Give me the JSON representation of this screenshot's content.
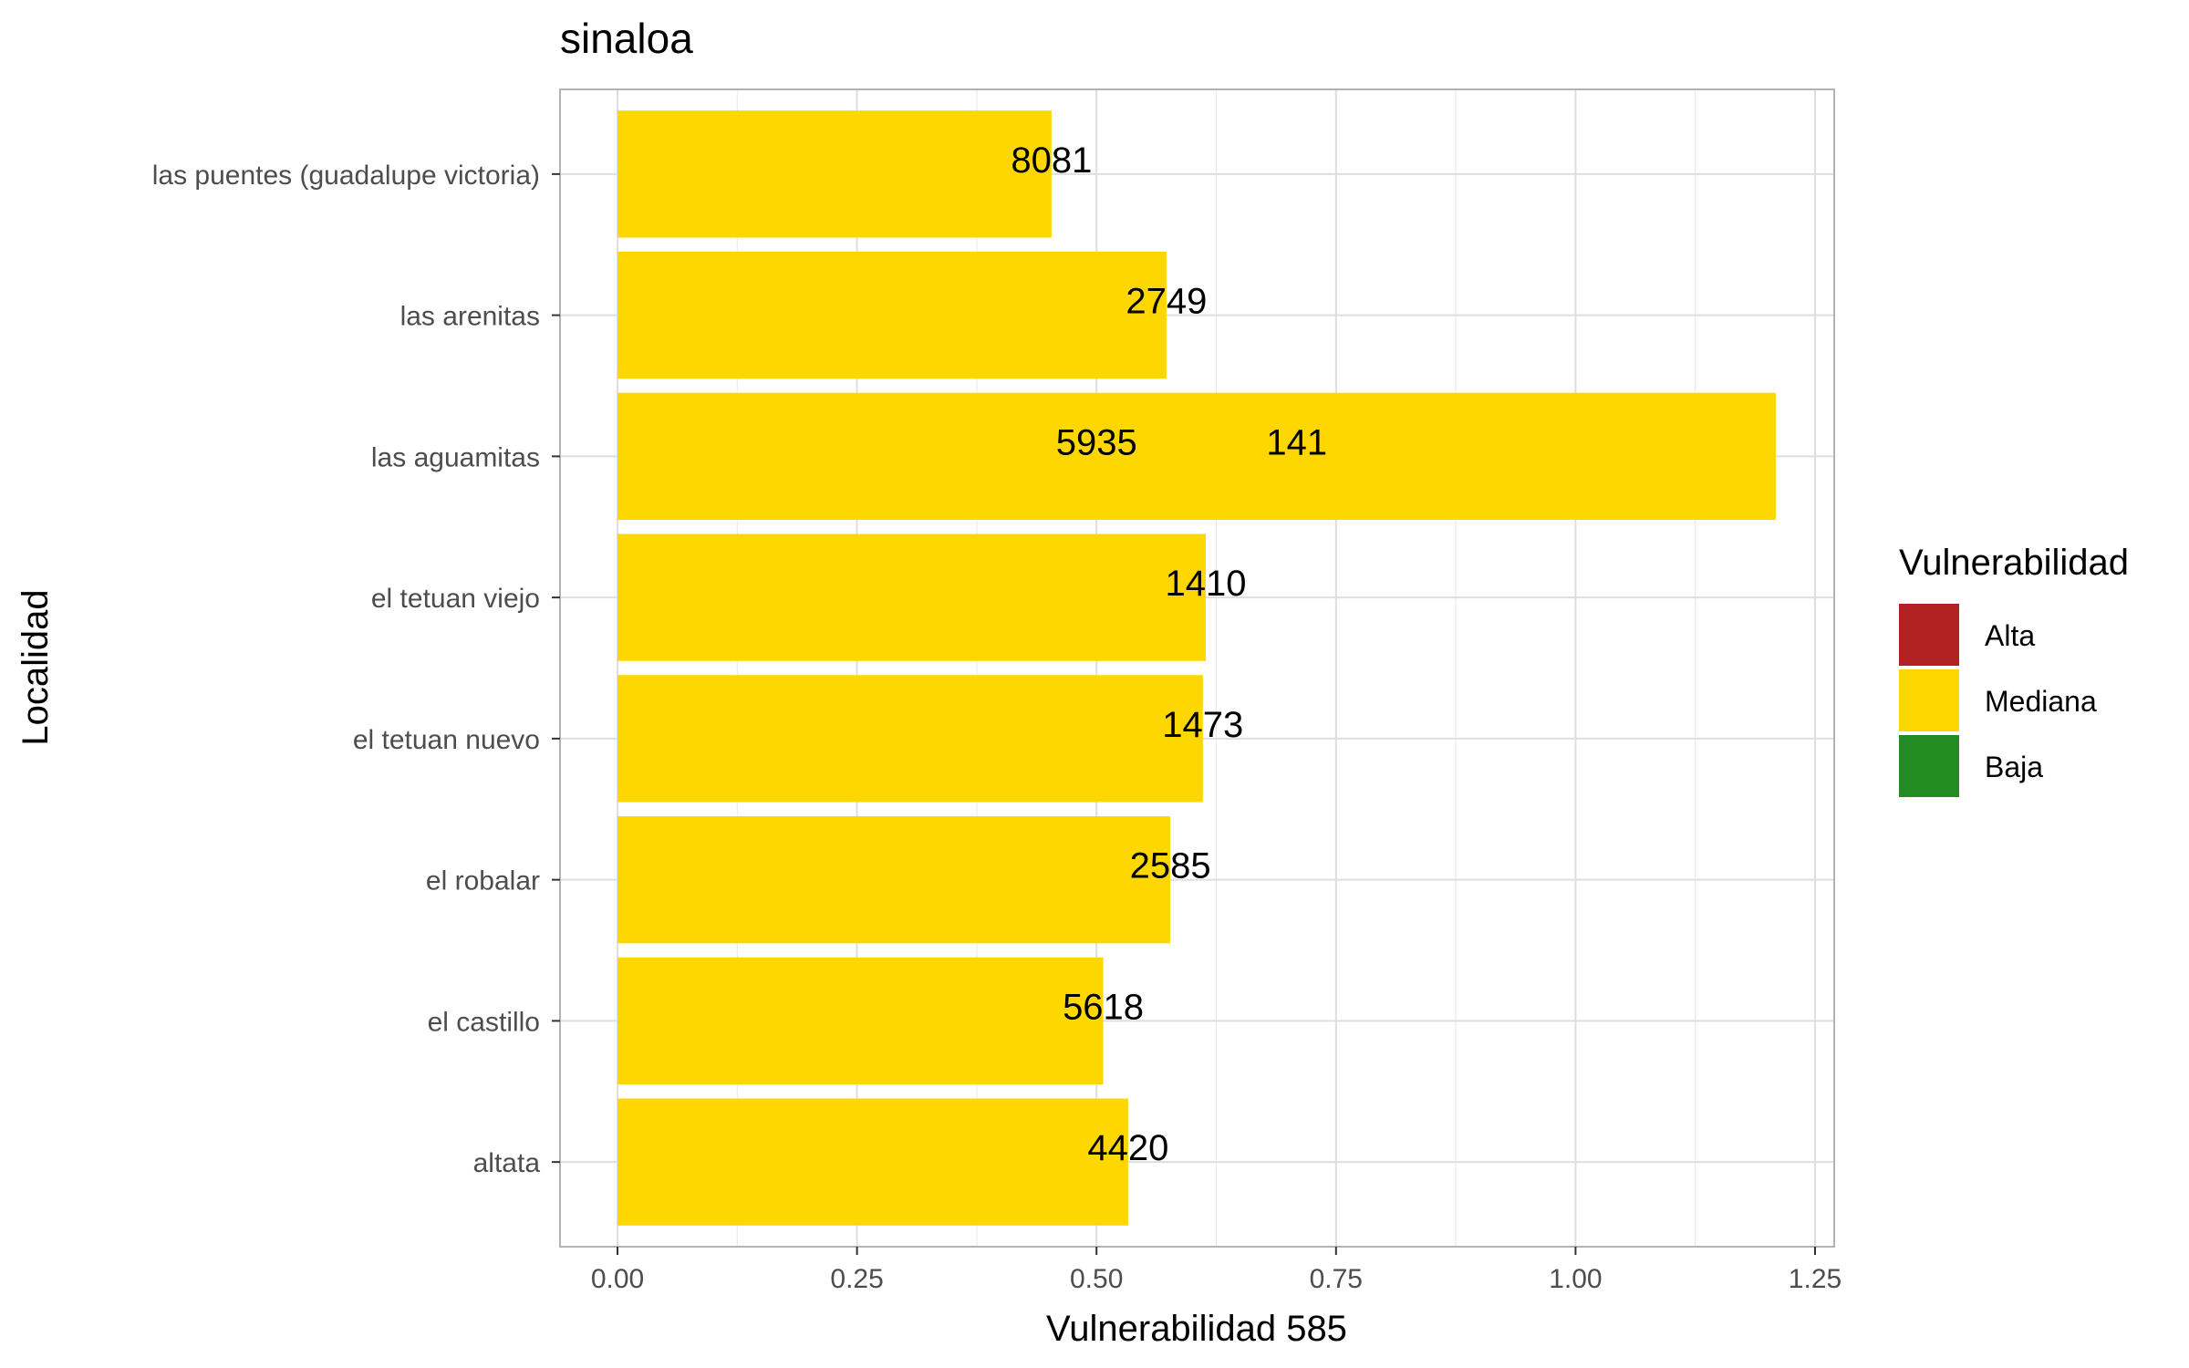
{
  "chart_data": {
    "type": "bar",
    "orientation": "horizontal",
    "title": "sinaloa",
    "xlabel": "Vulnerabilidad 585",
    "ylabel": "Localidad",
    "xlim": [
      -0.06,
      1.27
    ],
    "xticks": [
      0.0,
      0.25,
      0.5,
      0.75,
      1.0,
      1.25
    ],
    "xtick_labels": [
      "0.00",
      "0.25",
      "0.50",
      "0.75",
      "1.00",
      "1.25"
    ],
    "grid": true,
    "categories": [
      "las puentes (guadalupe victoria)",
      "las arenitas",
      "las aguamitas",
      "el tetuan viejo",
      "el tetuan nuevo",
      "el robalar",
      "el castillo",
      "altata"
    ],
    "values": [
      0.453,
      0.573,
      1.209,
      0.614,
      0.611,
      0.577,
      0.507,
      0.533
    ],
    "bar_color": "#FFD700",
    "data_labels": [
      {
        "category": "las puentes (guadalupe victoria)",
        "text": "8081",
        "x": 0.453
      },
      {
        "category": "las arenitas",
        "text": "2749",
        "x": 0.573
      },
      {
        "category": "las aguamitas",
        "text": "5935",
        "x": 0.5
      },
      {
        "category": "las aguamitas",
        "text": "141",
        "x": 0.709
      },
      {
        "category": "el tetuan viejo",
        "text": "1410",
        "x": 0.614
      },
      {
        "category": "el tetuan nuevo",
        "text": "1473",
        "x": 0.611
      },
      {
        "category": "el robalar",
        "text": "2585",
        "x": 0.577
      },
      {
        "category": "el castillo",
        "text": "5618",
        "x": 0.507
      },
      {
        "category": "altata",
        "text": "4420",
        "x": 0.533
      }
    ],
    "legend": {
      "title": "Vulnerabilidad",
      "placement": "right",
      "items": [
        {
          "label": "Alta",
          "color": "#B22222"
        },
        {
          "label": "Mediana",
          "color": "#FFD700"
        },
        {
          "label": "Baja",
          "color": "#228B22"
        }
      ]
    }
  }
}
